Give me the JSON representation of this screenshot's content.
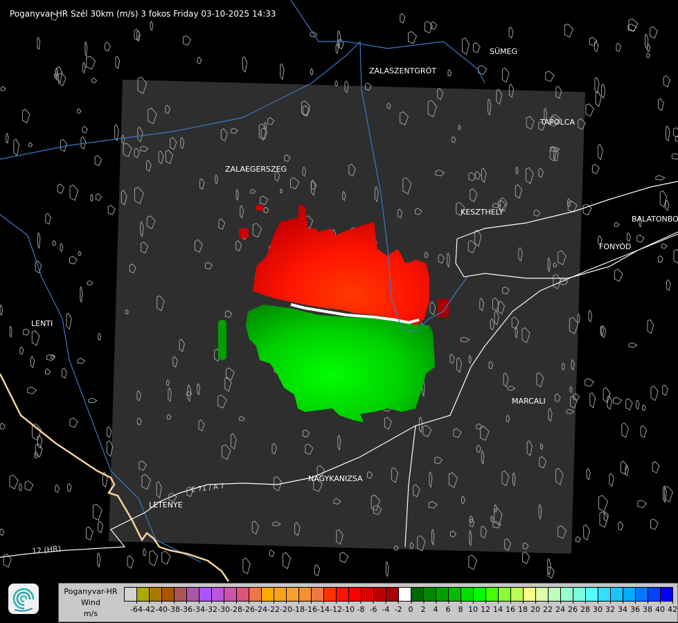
{
  "title": "Poganyvar-HR Szél 30km (m/s) 3 fokos Friday 03-10-2025 14:33",
  "cities": [
    {
      "name": "ZALASZENTGRÓT"
    },
    {
      "name": "SÜMEG"
    },
    {
      "name": "TAPOLCA"
    },
    {
      "name": "ZALAEGERSZEG"
    },
    {
      "name": "KESZTHELY"
    },
    {
      "name": "BALATONBO"
    },
    {
      "name": "FONYÓD"
    },
    {
      "name": "LENTI"
    },
    {
      "name": "MARCALI"
    },
    {
      "name": "NAGYKANIZSA"
    },
    {
      "name": "LETENYE"
    }
  ],
  "roads": {
    "e71": "E 71 / A 7",
    "hr12": "12 (HR)"
  },
  "legend": {
    "line1": "Poganyvar-HR",
    "line2": "Wind",
    "line3": "m/s",
    "labels": [
      "-64",
      "-42",
      "-40",
      "-38",
      "-36",
      "-34",
      "-32",
      "-30",
      "-28",
      "-26",
      "-24",
      "-22",
      "-20",
      "-18",
      "-16",
      "-14",
      "-12",
      "-10",
      "-8",
      "-6",
      "-4",
      "-2",
      "0",
      "2",
      "4",
      "6",
      "8",
      "10",
      "12",
      "14",
      "16",
      "18",
      "20",
      "22",
      "24",
      "26",
      "28",
      "30",
      "32",
      "34",
      "36",
      "38",
      "40",
      "42"
    ],
    "colors": [
      "#d3d3d3",
      "#aaaa00",
      "#aa7700",
      "#aa5500",
      "#aa5555",
      "#aa55aa",
      "#aa55ff",
      "#bb55dd",
      "#cc55aa",
      "#dd5577",
      "#ee7744",
      "#ffaa00",
      "#f7a01a",
      "#f7a030",
      "#f39030",
      "#ee7744",
      "#ff3300",
      "#ff1100",
      "#ff0000",
      "#dd0000",
      "#bb0000",
      "#aa0000",
      "#ffffff",
      "#006600",
      "#008800",
      "#00a000",
      "#00bb00",
      "#00dd00",
      "#00ff00",
      "#44ff00",
      "#88ff33",
      "#bbff55",
      "#ffff88",
      "#ddffaa",
      "#bbffbb",
      "#99ffcc",
      "#77ffdd",
      "#55ffff",
      "#33ddff",
      "#1bc4ff",
      "#00aaff",
      "#0077ff",
      "#0044ff",
      "#0000ff"
    ]
  },
  "colors": {
    "background": "#000000",
    "radar_area": "#2e2e2e",
    "river": "#3a7bc8",
    "border": "#f5d49a",
    "road": "#ffffff",
    "settlement": "#a0a0a0"
  }
}
